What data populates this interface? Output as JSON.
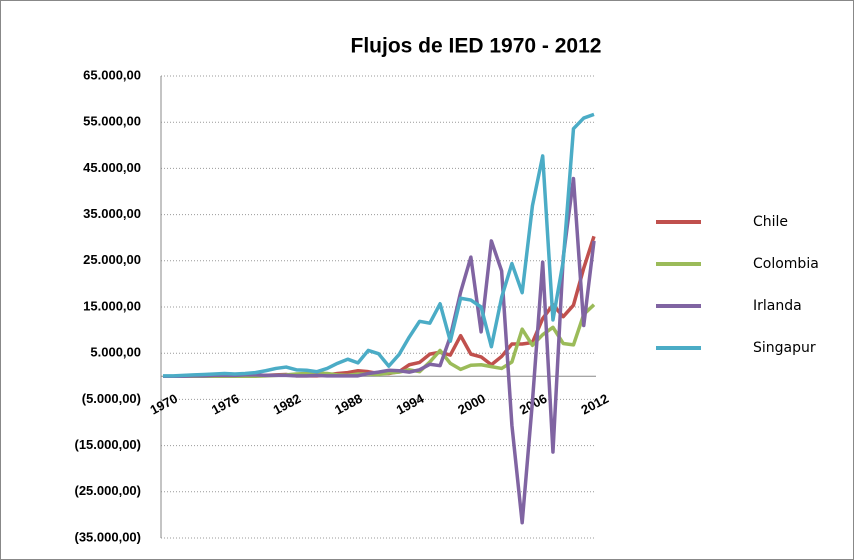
{
  "chart_data": {
    "type": "line",
    "title": "Flujos de IED 1970 - 2012",
    "categories": [
      "1970",
      null,
      null,
      null,
      null,
      null,
      "1976",
      null,
      null,
      null,
      null,
      null,
      "1982",
      null,
      null,
      null,
      null,
      null,
      "1988",
      null,
      null,
      null,
      null,
      null,
      "1994",
      null,
      null,
      null,
      null,
      null,
      "2000",
      null,
      null,
      null,
      null,
      null,
      "2006",
      null,
      null,
      null,
      null,
      null,
      "2012"
    ],
    "series": [
      {
        "name": "Chile",
        "color": "#c0504d",
        "values": [
          0,
          0,
          0,
          0,
          0,
          0,
          0,
          0,
          0,
          100,
          200,
          300,
          400,
          100,
          100,
          100,
          300,
          600,
          800,
          1200,
          1000,
          600,
          600,
          1000,
          2500,
          3000,
          4800,
          5200,
          4600,
          8800,
          4800,
          4200,
          2500,
          4300,
          7000,
          7000,
          7300,
          12500,
          15500,
          12900,
          15400,
          23400,
          30300
        ]
      },
      {
        "name": "Colombia",
        "color": "#9bbb59",
        "values": [
          0,
          0,
          0,
          0,
          0,
          0,
          0,
          0,
          0,
          0,
          100,
          200,
          300,
          500,
          600,
          700,
          600,
          300,
          200,
          500,
          500,
          400,
          700,
          900,
          1400,
          1000,
          3100,
          5600,
          2800,
          1500,
          2400,
          2500,
          2100,
          1700,
          3100,
          10200,
          6700,
          9000,
          10600,
          7100,
          6800,
          13400,
          15500
        ]
      },
      {
        "name": "Irlanda",
        "color": "#8064a2",
        "values": [
          0,
          0,
          0,
          100,
          100,
          200,
          200,
          200,
          300,
          300,
          200,
          200,
          200,
          100,
          100,
          200,
          100,
          100,
          100,
          100,
          600,
          900,
          1300,
          1200,
          900,
          1400,
          2600,
          2300,
          8600,
          18200,
          25800,
          9600,
          29300,
          22800,
          -10600,
          -31700,
          -5500,
          24700,
          -16400,
          25700,
          42800,
          11000,
          29300
        ]
      },
      {
        "name": "Singapur",
        "color": "#4bacc6",
        "values": [
          100,
          100,
          200,
          300,
          400,
          500,
          600,
          500,
          600,
          800,
          1200,
          1700,
          2000,
          1400,
          1300,
          1000,
          1700,
          2800,
          3700,
          2900,
          5600,
          4900,
          2200,
          4700,
          8500,
          11900,
          11500,
          15700,
          7600,
          16900,
          16500,
          15000,
          6400,
          17100,
          24400,
          18100,
          36900,
          47700,
          12200,
          24900,
          53600,
          55900,
          56700
        ]
      }
    ],
    "ylim": [
      -35000,
      65000
    ],
    "yticks": [
      {
        "value": -35000,
        "label": "(35.000,00)"
      },
      {
        "value": -25000,
        "label": "(25.000,00)"
      },
      {
        "value": -15000,
        "label": "(15.000,00)"
      },
      {
        "value": -5000,
        "label": "(5.000,00)"
      },
      {
        "value": 5000,
        "label": "5.000,00"
      },
      {
        "value": 15000,
        "label": "15.000,00"
      },
      {
        "value": 25000,
        "label": "25.000,00"
      },
      {
        "value": 35000,
        "label": "35.000,00"
      },
      {
        "value": 45000,
        "label": "45.000,00"
      },
      {
        "value": 55000,
        "label": "55.000,00"
      },
      {
        "value": 65000,
        "label": "65.000,00"
      }
    ],
    "grid": true,
    "legend": "right"
  }
}
